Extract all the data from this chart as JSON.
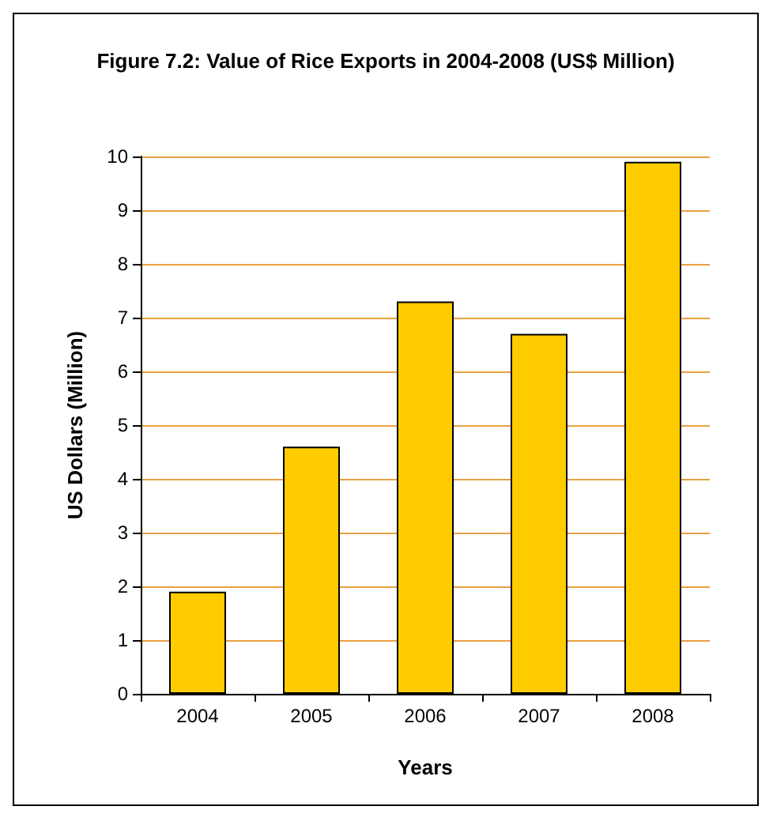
{
  "chart_data": {
    "type": "bar",
    "title": "Figure 7.2: Value of Rice Exports in 2004-2008 (US$ Million)",
    "xlabel": "Years",
    "ylabel": "US Dollars (Million)",
    "categories": [
      "2004",
      "2005",
      "2006",
      "2007",
      "2008"
    ],
    "values": [
      1.9,
      4.6,
      7.3,
      6.7,
      9.9
    ],
    "color": "#ffcc00",
    "ylim": [
      0,
      10
    ],
    "yticks": [
      0,
      1,
      2,
      3,
      4,
      5,
      6,
      7,
      8,
      9,
      10
    ],
    "grid": "y"
  }
}
